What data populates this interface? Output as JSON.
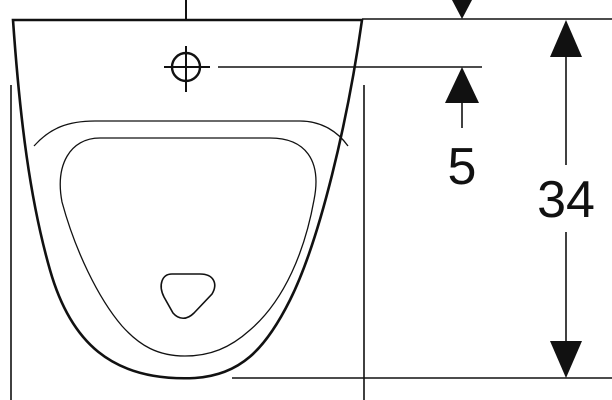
{
  "dimensions": {
    "inlet_offset": "5",
    "overall_height": "34"
  },
  "colors": {
    "line": "#111111",
    "background": "#ffffff"
  }
}
